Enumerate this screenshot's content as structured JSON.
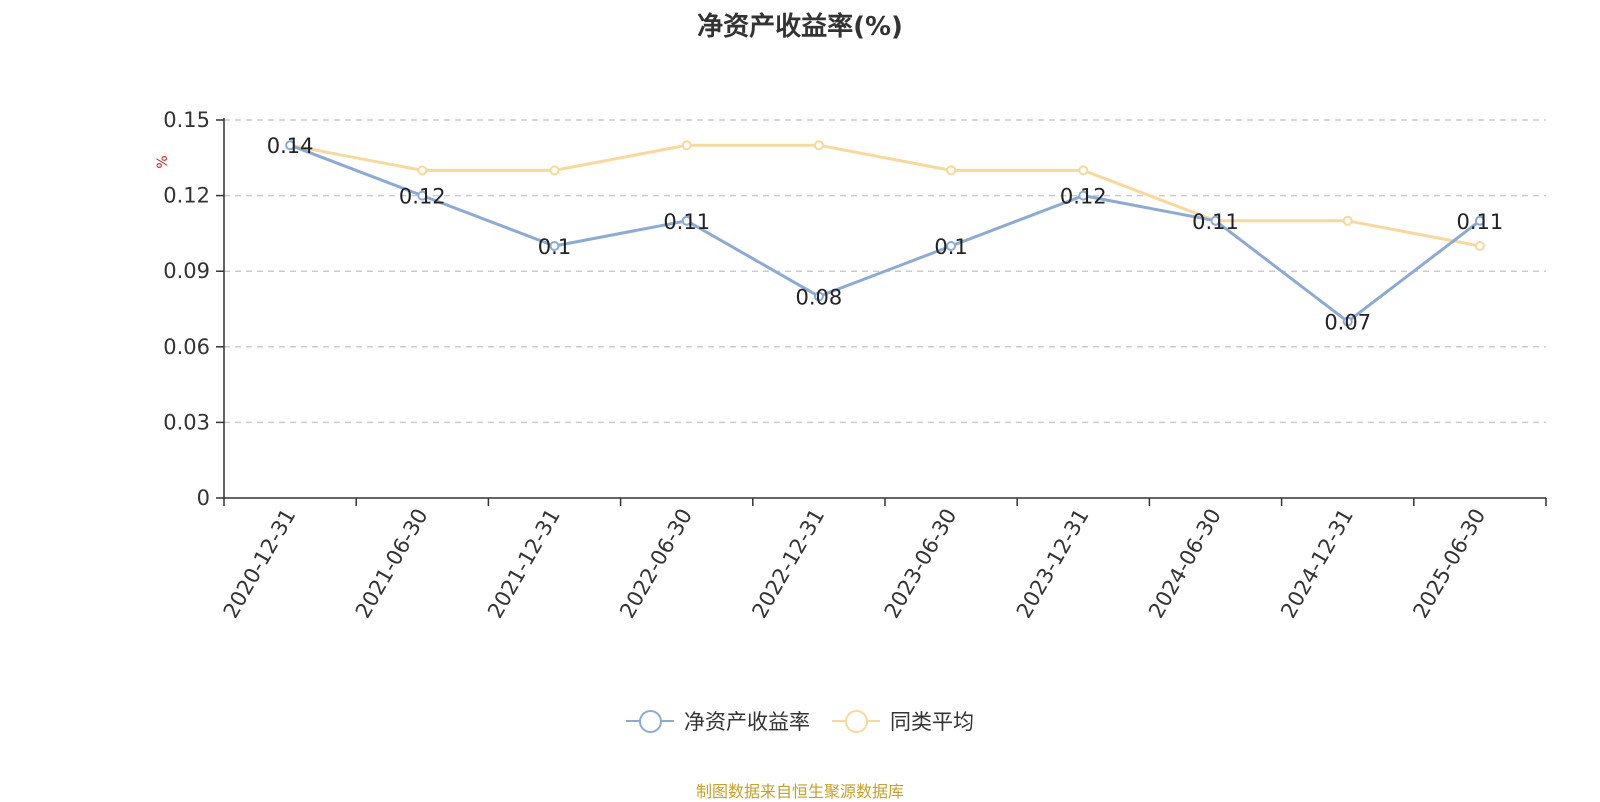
{
  "chart_data": {
    "type": "line",
    "title": "净资产收益率(%)",
    "ylabel": "%",
    "ylim": [
      0,
      0.15
    ],
    "yticks": [
      "0",
      "0.03",
      "0.06",
      "0.09",
      "0.12",
      "0.15"
    ],
    "grid": true,
    "legend_position": "bottom",
    "categories": [
      "2020-12-31",
      "2021-06-30",
      "2021-12-31",
      "2022-06-30",
      "2022-12-31",
      "2023-06-30",
      "2023-12-31",
      "2024-06-30",
      "2024-12-31",
      "2025-06-30"
    ],
    "series": [
      {
        "name": "净资产收益率",
        "color": "#8caad6",
        "values": [
          0.14,
          0.12,
          0.1,
          0.11,
          0.08,
          0.1,
          0.12,
          0.11,
          0.07,
          0.11
        ],
        "labels": [
          "0.14",
          "0.12",
          "0.1",
          "0.11",
          "0.08",
          "0.1",
          "0.12",
          "0.11",
          "0.07",
          "0.11"
        ]
      },
      {
        "name": "同类平均",
        "color": "#f8d99a",
        "values": [
          0.14,
          0.13,
          0.13,
          0.14,
          0.14,
          0.13,
          0.13,
          0.11,
          0.11,
          0.1
        ]
      }
    ]
  },
  "footer": "制图数据来自恒生聚源数据库"
}
